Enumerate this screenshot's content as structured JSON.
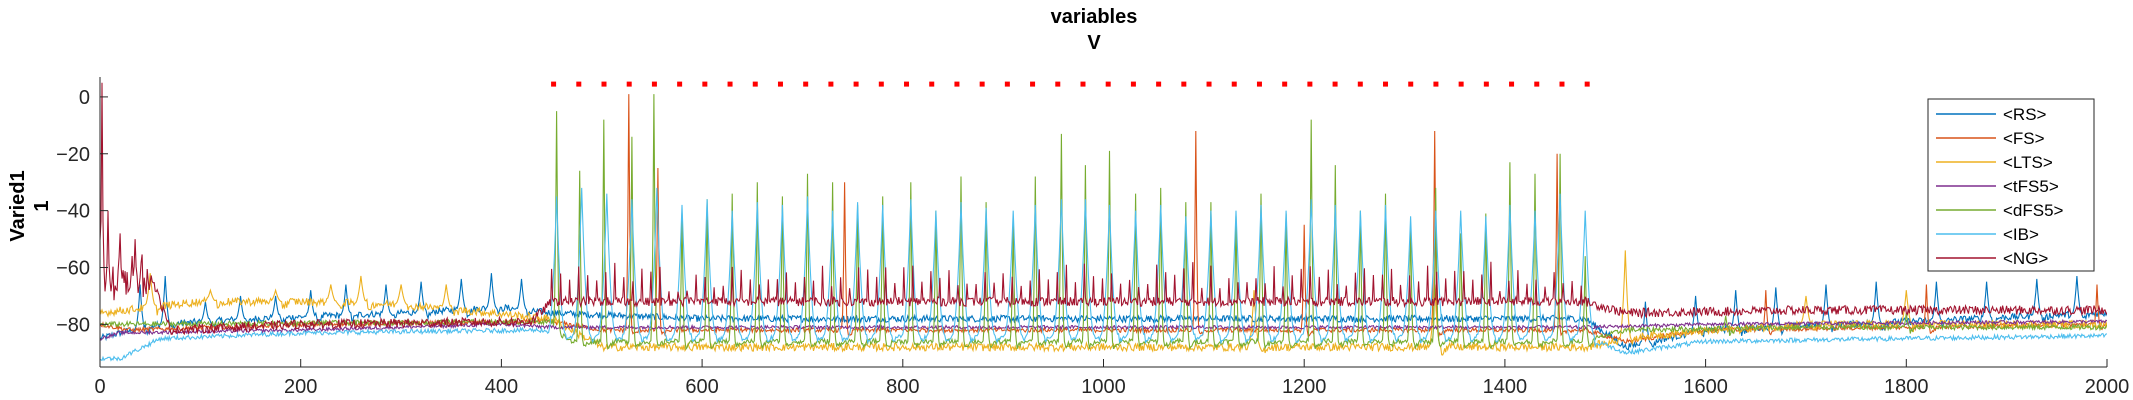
{
  "chart_data": {
    "type": "line",
    "title_lines": [
      "variables",
      "V"
    ],
    "ylabel_lines": [
      "Varied1",
      "1"
    ],
    "xlabel": "",
    "xlim": [
      0,
      2000
    ],
    "ylim": [
      -95,
      7
    ],
    "xticks": [
      0,
      200,
      400,
      600,
      800,
      1000,
      1200,
      1400,
      1600,
      1800,
      2000
    ],
    "yticks": [
      0,
      -20,
      -40,
      -60,
      -80
    ],
    "grid": false,
    "legend_position": "top-right",
    "stimulus_marker": {
      "x_start": 452,
      "x_end": 1482,
      "count": 42,
      "y": 4.5,
      "color": "#ff0000"
    },
    "series": [
      {
        "name": "<RS>",
        "color": "#0072BD",
        "baseline": [
          [
            0,
            -85
          ],
          [
            20,
            -83
          ],
          [
            60,
            -80
          ],
          [
            150,
            -78
          ],
          [
            300,
            -76
          ],
          [
            400,
            -74
          ],
          [
            450,
            -76
          ],
          [
            600,
            -78
          ],
          [
            1000,
            -78
          ],
          [
            1480,
            -78
          ],
          [
            1520,
            -88
          ],
          [
            1600,
            -82
          ],
          [
            1800,
            -79
          ],
          [
            2000,
            -76
          ]
        ],
        "spikes": [
          [
            40,
            -66
          ],
          [
            65,
            -63
          ],
          [
            105,
            -72
          ],
          [
            140,
            -70
          ],
          [
            175,
            -70
          ],
          [
            210,
            -68
          ],
          [
            245,
            -66
          ],
          [
            285,
            -66
          ],
          [
            320,
            -65
          ],
          [
            360,
            -64
          ],
          [
            390,
            -62
          ],
          [
            420,
            -64
          ],
          [
            1540,
            -72
          ],
          [
            1590,
            -70
          ],
          [
            1630,
            -68
          ],
          [
            1670,
            -67
          ],
          [
            1720,
            -66
          ],
          [
            1770,
            -65
          ],
          [
            1830,
            -65
          ],
          [
            1880,
            -65
          ],
          [
            1930,
            -64
          ],
          [
            1970,
            -63
          ]
        ],
        "spike_width": 5,
        "noise": 1.2
      },
      {
        "name": "<FS>",
        "color": "#D95319",
        "baseline": [
          [
            0,
            -80
          ],
          [
            30,
            -82
          ],
          [
            200,
            -80
          ],
          [
            450,
            -79
          ],
          [
            500,
            -82
          ],
          [
            1000,
            -82
          ],
          [
            1480,
            -82
          ],
          [
            1520,
            -86
          ],
          [
            1600,
            -82
          ],
          [
            2000,
            -80
          ]
        ],
        "spikes": [
          [
            527,
            1
          ],
          [
            556,
            -25
          ],
          [
            742,
            -30
          ],
          [
            1092,
            -12
          ],
          [
            1200,
            -45
          ],
          [
            1330,
            -12
          ],
          [
            1452,
            -20
          ],
          [
            1660,
            -68
          ],
          [
            1820,
            -66
          ],
          [
            1990,
            -66
          ]
        ],
        "spike_width": 3,
        "noise": 0.8
      },
      {
        "name": "<LTS>",
        "color": "#EDB120",
        "baseline": [
          [
            0,
            -76
          ],
          [
            100,
            -72
          ],
          [
            200,
            -72
          ],
          [
            300,
            -73
          ],
          [
            450,
            -78
          ],
          [
            500,
            -88
          ],
          [
            1000,
            -88
          ],
          [
            1480,
            -88
          ],
          [
            1540,
            -84
          ],
          [
            1700,
            -80
          ],
          [
            2000,
            -80
          ]
        ],
        "spikes": [
          [
            50,
            -62
          ],
          [
            110,
            -68
          ],
          [
            175,
            -68
          ],
          [
            230,
            -66
          ],
          [
            260,
            -63
          ],
          [
            300,
            -66
          ],
          [
            345,
            -66
          ],
          [
            1150,
            -68
          ],
          [
            1330,
            -66
          ],
          [
            1520,
            -54
          ],
          [
            1700,
            -70
          ],
          [
            1800,
            -68
          ]
        ],
        "spike_width": 6,
        "noise": 1.4
      },
      {
        "name": "<tFS5>",
        "color": "#7E2F8E",
        "baseline": [
          [
            0,
            -85
          ],
          [
            20,
            -83
          ],
          [
            200,
            -82
          ],
          [
            400,
            -80
          ],
          [
            450,
            -81
          ],
          [
            1000,
            -81
          ],
          [
            1480,
            -81
          ],
          [
            1600,
            -80
          ],
          [
            2000,
            -79
          ]
        ],
        "spikes": [],
        "spike_width": 3,
        "noise": 0.6
      },
      {
        "name": "<dFS5>",
        "color": "#77AC30",
        "baseline": [
          [
            0,
            -80
          ],
          [
            450,
            -79
          ],
          [
            470,
            -86
          ],
          [
            1000,
            -86
          ],
          [
            1480,
            -86
          ],
          [
            1520,
            -82
          ],
          [
            1700,
            -81
          ],
          [
            2000,
            -81
          ]
        ],
        "spikes": [
          [
            455,
            -5
          ],
          [
            478,
            -26
          ],
          [
            502,
            -8
          ],
          [
            530,
            -14
          ],
          [
            552,
            1
          ],
          [
            580,
            -41
          ],
          [
            605,
            -36
          ],
          [
            630,
            -34
          ],
          [
            655,
            -30
          ],
          [
            680,
            -35
          ],
          [
            705,
            -27
          ],
          [
            730,
            -30
          ],
          [
            755,
            -38
          ],
          [
            780,
            -35
          ],
          [
            808,
            -30
          ],
          [
            833,
            -40
          ],
          [
            858,
            -28
          ],
          [
            883,
            -37
          ],
          [
            910,
            -44
          ],
          [
            932,
            -28
          ],
          [
            958,
            -13
          ],
          [
            982,
            -24
          ],
          [
            1006,
            -19
          ],
          [
            1032,
            -34
          ],
          [
            1057,
            -32
          ],
          [
            1082,
            -37
          ],
          [
            1107,
            -37
          ],
          [
            1132,
            -42
          ],
          [
            1157,
            -34
          ],
          [
            1182,
            -41
          ],
          [
            1207,
            -8
          ],
          [
            1231,
            -24
          ],
          [
            1256,
            -40
          ],
          [
            1281,
            -34
          ],
          [
            1306,
            -45
          ],
          [
            1331,
            -32
          ],
          [
            1356,
            -48
          ],
          [
            1381,
            -41
          ],
          [
            1405,
            -23
          ],
          [
            1430,
            -27
          ],
          [
            1455,
            -20
          ],
          [
            1480,
            -56
          ],
          [
            1620,
            -77
          ],
          [
            1800,
            -76
          ]
        ],
        "spike_width": 3,
        "noise": 0.9
      },
      {
        "name": "<IB>",
        "color": "#4DBEEE",
        "baseline": [
          [
            0,
            -92
          ],
          [
            20,
            -92
          ],
          [
            60,
            -85
          ],
          [
            200,
            -83
          ],
          [
            440,
            -82
          ],
          [
            460,
            -84
          ],
          [
            1000,
            -84
          ],
          [
            1480,
            -84
          ],
          [
            1520,
            -90
          ],
          [
            1600,
            -86
          ],
          [
            2000,
            -84
          ]
        ],
        "spikes": [
          [
            455,
            -35
          ],
          [
            480,
            -32
          ],
          [
            505,
            -34
          ],
          [
            530,
            -36
          ],
          [
            555,
            -32
          ],
          [
            580,
            -38
          ],
          [
            605,
            -36
          ],
          [
            630,
            -40
          ],
          [
            655,
            -37
          ],
          [
            680,
            -38
          ],
          [
            705,
            -35
          ],
          [
            730,
            -40
          ],
          [
            755,
            -37
          ],
          [
            780,
            -38
          ],
          [
            808,
            -36
          ],
          [
            833,
            -40
          ],
          [
            858,
            -37
          ],
          [
            883,
            -39
          ],
          [
            910,
            -40
          ],
          [
            932,
            -38
          ],
          [
            958,
            -36
          ],
          [
            982,
            -36
          ],
          [
            1006,
            -38
          ],
          [
            1032,
            -40
          ],
          [
            1057,
            -38
          ],
          [
            1082,
            -42
          ],
          [
            1107,
            -40
          ],
          [
            1132,
            -40
          ],
          [
            1157,
            -38
          ],
          [
            1182,
            -40
          ],
          [
            1207,
            -36
          ],
          [
            1231,
            -38
          ],
          [
            1256,
            -40
          ],
          [
            1281,
            -38
          ],
          [
            1306,
            -42
          ],
          [
            1331,
            -40
          ],
          [
            1356,
            -40
          ],
          [
            1381,
            -42
          ],
          [
            1405,
            -38
          ],
          [
            1430,
            -40
          ],
          [
            1455,
            -34
          ],
          [
            1480,
            -40
          ]
        ],
        "spike_width": 9,
        "noise": 0.8
      },
      {
        "name": "<NG>",
        "color": "#A2142F",
        "baseline": [
          [
            0,
            -50
          ],
          [
            3,
            -65
          ],
          [
            50,
            -62
          ],
          [
            70,
            -82
          ],
          [
            200,
            -80
          ],
          [
            430,
            -79
          ],
          [
            450,
            -72
          ],
          [
            1000,
            -72
          ],
          [
            1480,
            -72
          ],
          [
            1520,
            -76
          ],
          [
            1700,
            -75
          ],
          [
            2000,
            -75
          ]
        ],
        "spikes": [
          [
            2,
            5
          ],
          [
            8,
            -40
          ],
          [
            20,
            -48
          ],
          [
            35,
            -50
          ]
        ],
        "spike_width": 2,
        "noise": 1.6,
        "dense_spikes": {
          "x_start": 450,
          "x_end": 1480,
          "step": 9,
          "height": 10
        },
        "early_noise": {
          "x_start": 0,
          "x_end": 50,
          "amplitude": 7
        }
      }
    ]
  }
}
